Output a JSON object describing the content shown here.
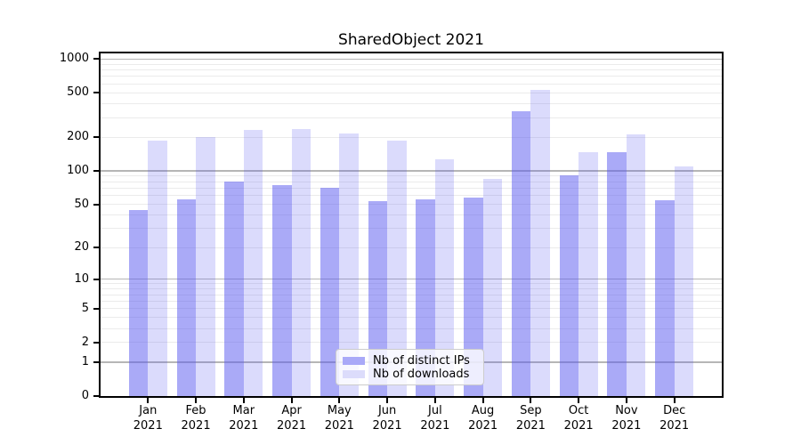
{
  "chart_data": {
    "type": "bar",
    "title": "SharedObject 2021",
    "x": {
      "month_labels": [
        "Jan",
        "Feb",
        "Mar",
        "Apr",
        "May",
        "Jun",
        "Jul",
        "Aug",
        "Sep",
        "Oct",
        "Nov",
        "Dec"
      ],
      "year": "2021"
    },
    "series": [
      {
        "name": "Nb of distinct IPs",
        "values": [
          44,
          55,
          80,
          74,
          71,
          53,
          55,
          58,
          345,
          91,
          148,
          54
        ],
        "color": "rgba(85,85,240,0.5)",
        "color_solid": "#a9a9f8"
      },
      {
        "name": "Nb of downloads",
        "values": [
          188,
          200,
          234,
          239,
          216,
          188,
          127,
          85,
          530,
          148,
          214,
          110
        ],
        "color": "rgba(85,85,240,0.21)",
        "color_solid": "#dcdcfb"
      }
    ],
    "y_axis": {
      "scale": "log10(1+y)",
      "tick_labels": [
        "0",
        "1",
        "2",
        "5",
        "10",
        "20",
        "50",
        "100",
        "200",
        "500",
        "1000"
      ],
      "tick_values": [
        0,
        1,
        2,
        5,
        10,
        20,
        50,
        100,
        200,
        500,
        1000
      ],
      "major_gridlines": [
        1,
        10,
        100,
        1000
      ],
      "ylim": [
        0,
        1000
      ],
      "grid": true
    },
    "legend": {
      "position": "lower-center",
      "entries": [
        "Nb of distinct IPs",
        "Nb of downloads"
      ]
    }
  },
  "colors": {
    "background": "#ffffff",
    "axis": "#000000",
    "text": "#000000",
    "grid_major": "#b6b6b6",
    "grid_minor": "#ebebeb",
    "legend_border": "#cccccc",
    "legend_background": "rgba(255,255,255,0.8)"
  }
}
